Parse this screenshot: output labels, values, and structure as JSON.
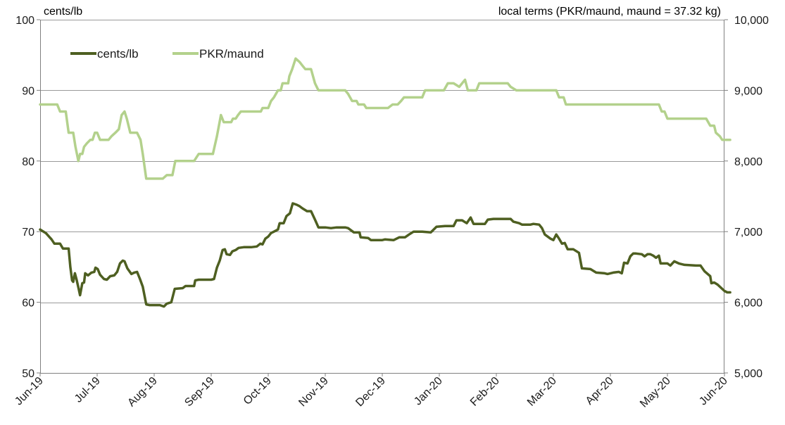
{
  "chart_data": {
    "type": "line",
    "left_axis_label": "cents/lb",
    "right_axis_label": "local terms (PKR/maund, maund = 37.32 kg)",
    "left_ylim": [
      50,
      100
    ],
    "left_yticks": [
      "50",
      "60",
      "70",
      "80",
      "90",
      "100"
    ],
    "right_ylim": [
      5000,
      10000
    ],
    "right_yticks": [
      "5,000",
      "6,000",
      "7,000",
      "8,000",
      "9,000",
      "10,000"
    ],
    "x_ticks": [
      "Jun-19",
      "Jul-19",
      "Aug-19",
      "Sep-19",
      "Oct-19",
      "Nov-19",
      "Dec-19",
      "Jan-20",
      "Feb-20",
      "Mar-20",
      "Apr-20",
      "May-20",
      "Jun-20"
    ],
    "x_unit": "months since Jun-19",
    "grid": true,
    "legend_placement": "top-left",
    "series": [
      {
        "name": "cents/lb",
        "axis": "left",
        "color": "#4e5f21",
        "points": [
          [
            0.0,
            70.3
          ],
          [
            0.1,
            69.8
          ],
          [
            0.2,
            68.9
          ],
          [
            0.25,
            68.3
          ],
          [
            0.35,
            68.3
          ],
          [
            0.4,
            67.6
          ],
          [
            0.5,
            67.6
          ],
          [
            0.53,
            65.0
          ],
          [
            0.56,
            63.1
          ],
          [
            0.58,
            62.9
          ],
          [
            0.61,
            64.1
          ],
          [
            0.64,
            63.2
          ],
          [
            0.67,
            62.1
          ],
          [
            0.7,
            61.0
          ],
          [
            0.74,
            62.7
          ],
          [
            0.77,
            62.8
          ],
          [
            0.79,
            64.1
          ],
          [
            0.84,
            63.8
          ],
          [
            0.9,
            64.2
          ],
          [
            0.95,
            64.3
          ],
          [
            0.97,
            64.9
          ],
          [
            1.01,
            64.7
          ],
          [
            1.05,
            63.9
          ],
          [
            1.12,
            63.3
          ],
          [
            1.17,
            63.2
          ],
          [
            1.23,
            63.7
          ],
          [
            1.3,
            63.8
          ],
          [
            1.35,
            64.3
          ],
          [
            1.4,
            65.5
          ],
          [
            1.45,
            65.9
          ],
          [
            1.48,
            65.8
          ],
          [
            1.53,
            64.8
          ],
          [
            1.6,
            64.0
          ],
          [
            1.65,
            64.2
          ],
          [
            1.7,
            64.3
          ],
          [
            1.75,
            63.3
          ],
          [
            1.8,
            62.2
          ],
          [
            1.86,
            59.7
          ],
          [
            1.92,
            59.6
          ],
          [
            2.0,
            59.6
          ],
          [
            2.1,
            59.6
          ],
          [
            2.17,
            59.4
          ],
          [
            2.22,
            59.8
          ],
          [
            2.3,
            60.0
          ],
          [
            2.36,
            61.9
          ],
          [
            2.5,
            62.0
          ],
          [
            2.55,
            62.3
          ],
          [
            2.7,
            62.3
          ],
          [
            2.72,
            63.1
          ],
          [
            2.78,
            63.2
          ],
          [
            3.0,
            63.2
          ],
          [
            3.05,
            63.3
          ],
          [
            3.1,
            64.9
          ],
          [
            3.15,
            65.9
          ],
          [
            3.2,
            67.4
          ],
          [
            3.24,
            67.5
          ],
          [
            3.27,
            66.8
          ],
          [
            3.33,
            66.7
          ],
          [
            3.37,
            67.2
          ],
          [
            3.43,
            67.4
          ],
          [
            3.48,
            67.7
          ],
          [
            3.57,
            67.8
          ],
          [
            3.7,
            67.8
          ],
          [
            3.8,
            67.9
          ],
          [
            3.86,
            68.3
          ],
          [
            3.9,
            68.2
          ],
          [
            3.95,
            69.0
          ],
          [
            4.0,
            69.3
          ],
          [
            4.05,
            69.8
          ],
          [
            4.1,
            70.0
          ],
          [
            4.17,
            70.3
          ],
          [
            4.2,
            71.2
          ],
          [
            4.27,
            71.2
          ],
          [
            4.32,
            72.2
          ],
          [
            4.38,
            72.6
          ],
          [
            4.43,
            74.0
          ],
          [
            4.5,
            73.8
          ],
          [
            4.55,
            73.6
          ],
          [
            4.6,
            73.3
          ],
          [
            4.68,
            72.9
          ],
          [
            4.75,
            72.9
          ],
          [
            4.82,
            71.7
          ],
          [
            4.88,
            70.6
          ],
          [
            5.0,
            70.6
          ],
          [
            5.1,
            70.5
          ],
          [
            5.2,
            70.6
          ],
          [
            5.35,
            70.6
          ],
          [
            5.4,
            70.5
          ],
          [
            5.5,
            69.9
          ],
          [
            5.6,
            69.9
          ],
          [
            5.62,
            69.2
          ],
          [
            5.75,
            69.1
          ],
          [
            5.8,
            68.8
          ],
          [
            6.0,
            68.8
          ],
          [
            6.05,
            68.9
          ],
          [
            6.2,
            68.8
          ],
          [
            6.3,
            69.2
          ],
          [
            6.4,
            69.2
          ],
          [
            6.47,
            69.6
          ],
          [
            6.55,
            70.0
          ],
          [
            6.7,
            70.0
          ],
          [
            6.85,
            69.9
          ],
          [
            6.95,
            70.7
          ],
          [
            7.1,
            70.8
          ],
          [
            7.25,
            70.8
          ],
          [
            7.3,
            71.6
          ],
          [
            7.4,
            71.6
          ],
          [
            7.48,
            71.2
          ],
          [
            7.55,
            72.0
          ],
          [
            7.6,
            71.1
          ],
          [
            7.7,
            71.1
          ],
          [
            7.8,
            71.1
          ],
          [
            7.85,
            71.7
          ],
          [
            7.95,
            71.8
          ],
          [
            8.0,
            71.8
          ],
          [
            8.1,
            71.8
          ],
          [
            8.25,
            71.8
          ],
          [
            8.3,
            71.4
          ],
          [
            8.4,
            71.2
          ],
          [
            8.45,
            71.0
          ],
          [
            8.6,
            71.0
          ],
          [
            8.65,
            71.1
          ],
          [
            8.75,
            71.0
          ],
          [
            8.8,
            70.5
          ],
          [
            8.85,
            69.6
          ],
          [
            8.95,
            69.0
          ],
          [
            9.0,
            68.8
          ],
          [
            9.05,
            69.6
          ],
          [
            9.1,
            69.0
          ],
          [
            9.15,
            68.3
          ],
          [
            9.2,
            68.4
          ],
          [
            9.25,
            67.5
          ],
          [
            9.35,
            67.5
          ],
          [
            9.45,
            67.0
          ],
          [
            9.5,
            64.8
          ],
          [
            9.65,
            64.7
          ],
          [
            9.75,
            64.2
          ],
          [
            9.9,
            64.1
          ],
          [
            9.95,
            64.0
          ],
          [
            10.05,
            64.2
          ],
          [
            10.15,
            64.3
          ],
          [
            10.2,
            64.1
          ],
          [
            10.24,
            65.6
          ],
          [
            10.3,
            65.5
          ],
          [
            10.35,
            66.5
          ],
          [
            10.4,
            66.9
          ],
          [
            10.45,
            66.9
          ],
          [
            10.55,
            66.8
          ],
          [
            10.6,
            66.5
          ],
          [
            10.65,
            66.8
          ],
          [
            10.7,
            66.8
          ],
          [
            10.75,
            66.6
          ],
          [
            10.8,
            66.3
          ],
          [
            10.85,
            66.6
          ],
          [
            10.88,
            65.5
          ],
          [
            11.0,
            65.5
          ],
          [
            11.05,
            65.2
          ],
          [
            11.12,
            65.8
          ],
          [
            11.2,
            65.5
          ],
          [
            11.3,
            65.3
          ],
          [
            11.5,
            65.2
          ],
          [
            11.58,
            65.2
          ],
          [
            11.65,
            64.4
          ],
          [
            11.75,
            63.7
          ],
          [
            11.77,
            62.7
          ],
          [
            11.82,
            62.8
          ],
          [
            11.88,
            62.5
          ],
          [
            12.0,
            61.6
          ],
          [
            12.05,
            61.4
          ],
          [
            12.1,
            61.4
          ]
        ]
      },
      {
        "name": "PKR/maund",
        "axis": "right",
        "color": "#b3d18c",
        "points": [
          [
            0.0,
            8800
          ],
          [
            0.3,
            8800
          ],
          [
            0.35,
            8700
          ],
          [
            0.45,
            8700
          ],
          [
            0.5,
            8400
          ],
          [
            0.58,
            8400
          ],
          [
            0.62,
            8200
          ],
          [
            0.67,
            8000
          ],
          [
            0.7,
            8100
          ],
          [
            0.74,
            8100
          ],
          [
            0.77,
            8200
          ],
          [
            0.82,
            8250
          ],
          [
            0.88,
            8300
          ],
          [
            0.92,
            8300
          ],
          [
            0.96,
            8400
          ],
          [
            1.0,
            8400
          ],
          [
            1.05,
            8300
          ],
          [
            1.2,
            8300
          ],
          [
            1.25,
            8350
          ],
          [
            1.32,
            8400
          ],
          [
            1.38,
            8450
          ],
          [
            1.43,
            8650
          ],
          [
            1.48,
            8700
          ],
          [
            1.52,
            8600
          ],
          [
            1.58,
            8400
          ],
          [
            1.7,
            8400
          ],
          [
            1.76,
            8300
          ],
          [
            1.8,
            8100
          ],
          [
            1.86,
            7750
          ],
          [
            2.0,
            7750
          ],
          [
            2.15,
            7750
          ],
          [
            2.22,
            7800
          ],
          [
            2.32,
            7800
          ],
          [
            2.37,
            8000
          ],
          [
            2.5,
            8000
          ],
          [
            2.7,
            8000
          ],
          [
            2.78,
            8100
          ],
          [
            3.03,
            8100
          ],
          [
            3.1,
            8350
          ],
          [
            3.17,
            8650
          ],
          [
            3.22,
            8550
          ],
          [
            3.35,
            8550
          ],
          [
            3.38,
            8600
          ],
          [
            3.43,
            8600
          ],
          [
            3.47,
            8650
          ],
          [
            3.52,
            8700
          ],
          [
            3.7,
            8700
          ],
          [
            3.87,
            8700
          ],
          [
            3.9,
            8750
          ],
          [
            4.0,
            8750
          ],
          [
            4.05,
            8850
          ],
          [
            4.1,
            8900
          ],
          [
            4.17,
            9000
          ],
          [
            4.22,
            9000
          ],
          [
            4.25,
            9100
          ],
          [
            4.35,
            9100
          ],
          [
            4.37,
            9200
          ],
          [
            4.42,
            9300
          ],
          [
            4.48,
            9450
          ],
          [
            4.55,
            9400
          ],
          [
            4.6,
            9350
          ],
          [
            4.65,
            9300
          ],
          [
            4.75,
            9300
          ],
          [
            4.82,
            9100
          ],
          [
            4.88,
            9000
          ],
          [
            5.0,
            9000
          ],
          [
            5.2,
            9000
          ],
          [
            5.35,
            9000
          ],
          [
            5.4,
            8950
          ],
          [
            5.47,
            8850
          ],
          [
            5.55,
            8850
          ],
          [
            5.58,
            8800
          ],
          [
            5.68,
            8800
          ],
          [
            5.72,
            8750
          ],
          [
            5.85,
            8750
          ],
          [
            6.0,
            8750
          ],
          [
            6.1,
            8750
          ],
          [
            6.18,
            8800
          ],
          [
            6.27,
            8800
          ],
          [
            6.33,
            8850
          ],
          [
            6.38,
            8900
          ],
          [
            6.5,
            8900
          ],
          [
            6.7,
            8900
          ],
          [
            6.75,
            9000
          ],
          [
            7.0,
            9000
          ],
          [
            7.08,
            9000
          ],
          [
            7.15,
            9100
          ],
          [
            7.25,
            9100
          ],
          [
            7.35,
            9050
          ],
          [
            7.4,
            9100
          ],
          [
            7.45,
            9150
          ],
          [
            7.5,
            9000
          ],
          [
            7.65,
            9000
          ],
          [
            7.7,
            9100
          ],
          [
            8.0,
            9100
          ],
          [
            8.2,
            9100
          ],
          [
            8.25,
            9050
          ],
          [
            8.35,
            9000
          ],
          [
            8.5,
            9000
          ],
          [
            8.75,
            9000
          ],
          [
            9.05,
            9000
          ],
          [
            9.1,
            8900
          ],
          [
            9.18,
            8900
          ],
          [
            9.22,
            8800
          ],
          [
            9.4,
            8800
          ],
          [
            10.0,
            8800
          ],
          [
            10.5,
            8800
          ],
          [
            10.85,
            8800
          ],
          [
            10.9,
            8700
          ],
          [
            10.95,
            8700
          ],
          [
            11.0,
            8600
          ],
          [
            11.2,
            8600
          ],
          [
            11.5,
            8600
          ],
          [
            11.68,
            8600
          ],
          [
            11.75,
            8500
          ],
          [
            11.82,
            8500
          ],
          [
            11.85,
            8400
          ],
          [
            11.92,
            8350
          ],
          [
            11.96,
            8300
          ],
          [
            12.0,
            8300
          ],
          [
            12.1,
            8300
          ]
        ]
      }
    ]
  }
}
